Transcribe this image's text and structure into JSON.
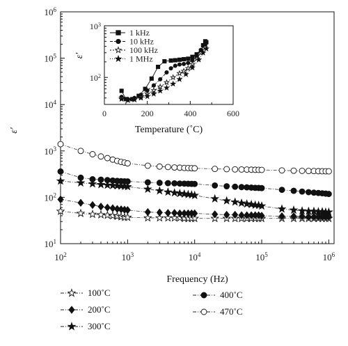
{
  "chart_data": [
    {
      "type": "scatter",
      "title": "",
      "xlabel": "Frequency (Hz)",
      "ylabel": "ε′",
      "xscale": "log",
      "yscale": "log",
      "xlim": [
        100,
        1200000
      ],
      "ylim": [
        10,
        1000000
      ],
      "x_ticks": [
        "10^2",
        "10^3",
        "10^4",
        "10^5",
        "10^6"
      ],
      "y_ticks": [
        "10^1",
        "10^2",
        "10^3",
        "10^4",
        "10^5",
        "10^6"
      ],
      "grid": false,
      "legend_placement": "bottom",
      "x": [
        100,
        200,
        300,
        400,
        500,
        600,
        700,
        800,
        900,
        1000,
        2000,
        3000,
        4000,
        5000,
        6000,
        7000,
        8000,
        9000,
        10000,
        20000,
        30000,
        40000,
        50000,
        60000,
        70000,
        80000,
        90000,
        100000,
        200000,
        300000,
        400000,
        500000,
        600000,
        700000,
        800000,
        900000,
        1000000
      ],
      "series": [
        {
          "name": "100˚C",
          "marker": "star-open",
          "values": [
            50,
            45,
            43,
            42,
            41,
            40,
            39,
            38,
            37,
            37,
            36,
            36,
            36,
            36,
            36,
            35,
            35,
            35,
            35,
            35,
            35,
            35,
            35,
            35,
            35,
            35,
            35,
            35,
            35,
            35,
            35,
            35,
            35,
            35,
            35,
            35,
            35
          ]
        },
        {
          "name": "200˚C",
          "marker": "diamond",
          "values": [
            90,
            76,
            68,
            63,
            60,
            58,
            56,
            55,
            54,
            53,
            48,
            47,
            46,
            46,
            45,
            45,
            45,
            45,
            45,
            43,
            42,
            42,
            41,
            41,
            41,
            41,
            41,
            40,
            39,
            39,
            39,
            38,
            38,
            38,
            38,
            38,
            38
          ]
        },
        {
          "name": "300˚C",
          "marker": "star",
          "values": [
            225,
            205,
            195,
            188,
            183,
            180,
            177,
            175,
            173,
            170,
            150,
            138,
            130,
            125,
            121,
            118,
            115,
            113,
            110,
            93,
            84,
            79,
            75,
            72,
            70,
            68,
            67,
            65,
            56,
            53,
            51,
            50,
            50,
            49,
            49,
            48,
            48
          ]
        },
        {
          "name": "400˚C",
          "marker": "circle",
          "values": [
            360,
            265,
            245,
            240,
            235,
            230,
            226,
            223,
            221,
            220,
            210,
            205,
            202,
            200,
            198,
            197,
            196,
            195,
            194,
            180,
            173,
            169,
            166,
            164,
            162,
            160,
            159,
            158,
            145,
            138,
            133,
            129,
            126,
            124,
            122,
            120,
            118
          ]
        },
        {
          "name": "470˚C",
          "marker": "circle-open",
          "values": [
            1400,
            1000,
            850,
            760,
            700,
            650,
            610,
            580,
            560,
            540,
            480,
            460,
            450,
            440,
            435,
            430,
            428,
            425,
            422,
            410,
            405,
            400,
            398,
            396,
            394,
            392,
            391,
            390,
            380,
            375,
            372,
            370,
            368,
            366,
            365,
            364,
            363
          ]
        }
      ]
    },
    {
      "type": "line",
      "title": "",
      "xlabel": "Temperature (˚C)",
      "ylabel": "ε′",
      "yscale": "log",
      "xlim": [
        0,
        600
      ],
      "ylim": [
        30,
        1000
      ],
      "x_ticks": [
        "0",
        "200",
        "400",
        "600"
      ],
      "y_ticks": [
        "10^2",
        "10^3"
      ],
      "grid": false,
      "legend_placement": "top-left",
      "series": [
        {
          "name": "1 kHz",
          "marker": "square",
          "x": [
            80,
            100,
            130,
            160,
            190,
            220,
            250,
            280,
            310,
            330,
            350,
            370,
            390,
            410,
            430,
            450,
            460,
            470,
            475
          ],
          "values": [
            55,
            38,
            38,
            44,
            60,
            95,
            160,
            205,
            212,
            215,
            220,
            225,
            230,
            250,
            280,
            330,
            420,
            500,
            480
          ]
        },
        {
          "name": "10 kHz",
          "marker": "circle",
          "x": [
            80,
            110,
            140,
            170,
            200,
            230,
            260,
            290,
            310,
            330,
            350,
            370,
            390,
            410,
            430,
            450,
            470
          ],
          "values": [
            42,
            38,
            40,
            46,
            56,
            70,
            92,
            125,
            150,
            168,
            178,
            182,
            190,
            215,
            260,
            340,
            430
          ]
        },
        {
          "name": "100 kHz",
          "marker": "star-open",
          "x": [
            80,
            110,
            140,
            170,
            200,
            230,
            260,
            290,
            320,
            350,
            370,
            390,
            410,
            430,
            450,
            470
          ],
          "values": [
            40,
            37,
            38,
            42,
            48,
            56,
            66,
            80,
            100,
            120,
            133,
            150,
            180,
            230,
            300,
            380
          ]
        },
        {
          "name": "1 MHz",
          "marker": "star",
          "x": [
            80,
            110,
            140,
            170,
            200,
            230,
            260,
            290,
            320,
            350,
            380,
            410,
            440,
            460,
            475
          ],
          "values": [
            38,
            36,
            37,
            40,
            43,
            48,
            55,
            63,
            75,
            92,
            115,
            155,
            220,
            300,
            360
          ]
        }
      ]
    }
  ],
  "legend": {
    "entries": [
      {
        "label": "100˚C",
        "marker": "star-open"
      },
      {
        "label": "200˚C",
        "marker": "diamond"
      },
      {
        "label": "300˚C",
        "marker": "star"
      },
      {
        "label": "400˚C",
        "marker": "circle"
      },
      {
        "label": "470˚C",
        "marker": "circle-open"
      }
    ]
  }
}
